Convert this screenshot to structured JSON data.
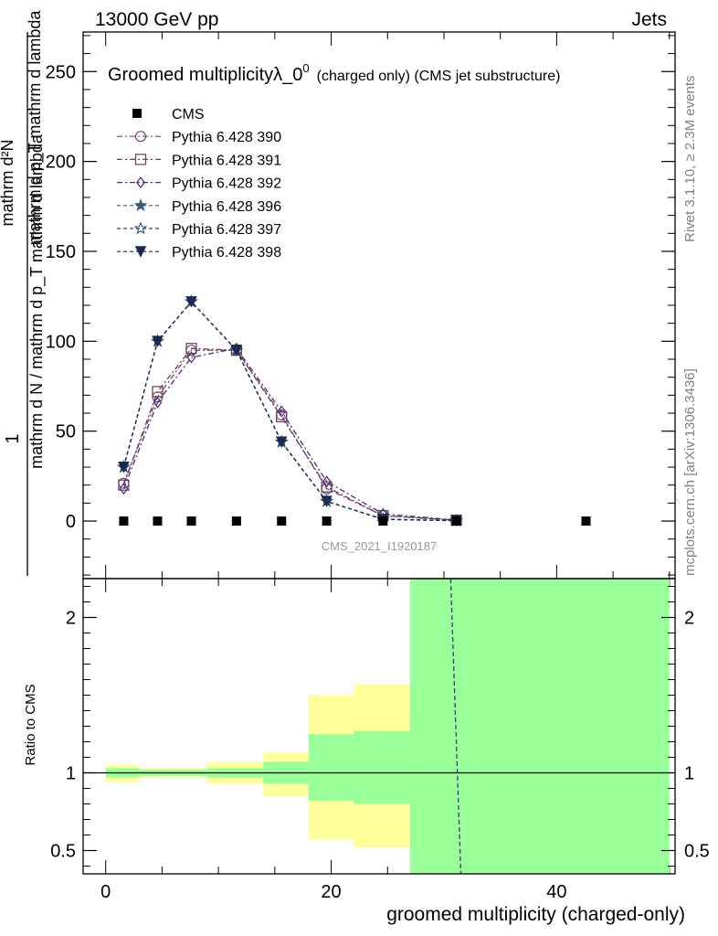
{
  "header": {
    "left": "13000 GeV pp",
    "right": "Jets"
  },
  "side": {
    "rivet": "Rivet 3.1.10, ≥ 2.3M events",
    "mcplots": "mcplots.cern.ch [arXiv:1306.3436]"
  },
  "chart_data": {
    "type": "line",
    "title_main": "Groomed multiplicityλ_0",
    "title_sup": "0",
    "title_sub": "(charged only) (CMS jet substructure)",
    "analysis_label": "CMS_2021_I1920187",
    "xlabel": "groomed multiplicity (charged-only)",
    "ylabel_num": "1",
    "ylabel_den": "mathrm d N / mathrm d p_T mathrm d lambda",
    "ylabel_top": "mathrm d²N",
    "ylabel_top_den": "mathrm d p_T mathrm d lambda",
    "ratio_ylabel": "Ratio to CMS",
    "xlim": [
      -2,
      50.5
    ],
    "ylim": [
      -32,
      272
    ],
    "ratio_ylim": [
      0.35,
      2.25
    ],
    "xticks": [
      0,
      20,
      40
    ],
    "yticks": [
      0,
      50,
      100,
      150,
      200,
      250
    ],
    "ratio_yticks": [
      0.5,
      1,
      2
    ],
    "bins": [
      [
        0,
        3
      ],
      [
        3,
        6
      ],
      [
        6,
        9
      ],
      [
        9,
        14
      ],
      [
        14,
        18
      ],
      [
        18,
        22
      ],
      [
        22,
        27
      ],
      [
        27,
        35
      ],
      [
        35,
        50
      ]
    ],
    "cms": {
      "name": "CMS",
      "x": [
        1.6,
        4.6,
        7.6,
        11.6,
        15.6,
        19.6,
        24.6,
        31.1,
        42.6
      ],
      "y": [
        0,
        0,
        0,
        0,
        0,
        0,
        0,
        0,
        0
      ]
    },
    "series": [
      {
        "name": "Pythia 6.428 390",
        "color": "#7a4a70",
        "marker": "circle",
        "dash": "6,3,2,3",
        "x": [
          1.6,
          4.6,
          7.6,
          11.6,
          15.6,
          19.6,
          24.6,
          31.1
        ],
        "y": [
          21,
          69,
          95,
          95,
          59,
          18,
          3,
          0.5
        ]
      },
      {
        "name": "Pythia 6.428 391",
        "color": "#6a3a55",
        "marker": "square",
        "dash": "6,3,2,3",
        "x": [
          1.6,
          4.6,
          7.6,
          11.6,
          15.6,
          19.6,
          24.6,
          31.1
        ],
        "y": [
          20,
          72,
          96,
          95,
          58,
          19,
          3,
          0.5
        ]
      },
      {
        "name": "Pythia 6.428 392",
        "color": "#4a2a7a",
        "marker": "diamond",
        "dash": "6,3,2,3",
        "x": [
          1.6,
          4.6,
          7.6,
          11.6,
          15.6,
          19.6,
          24.6,
          31.1
        ],
        "y": [
          18,
          66,
          91,
          96,
          61,
          22,
          4,
          0.6
        ]
      },
      {
        "name": "Pythia 6.428 396",
        "color": "#3a5a7a",
        "marker": "star",
        "dash": "4,3",
        "x": [
          1.6,
          4.6,
          7.6,
          11.6,
          15.6,
          19.6,
          24.6,
          31.1
        ],
        "y": [
          30,
          100,
          122,
          95,
          44,
          11,
          1,
          0.2
        ]
      },
      {
        "name": "Pythia 6.428 397",
        "color": "#2a4a6a",
        "marker": "star-open",
        "dash": "4,3",
        "x": [
          1.6,
          4.6,
          7.6,
          11.6,
          15.6,
          19.6,
          24.6,
          31.1
        ],
        "y": [
          30,
          100,
          122,
          95,
          44,
          11,
          1,
          0.2
        ]
      },
      {
        "name": "Pythia 6.428 398",
        "color": "#1a2a55",
        "marker": "triangle-down",
        "dash": "4,3",
        "x": [
          1.6,
          4.6,
          7.6,
          11.6,
          15.6,
          19.6,
          24.6,
          31.1
        ],
        "y": [
          30,
          100,
          122,
          95,
          44,
          11,
          1,
          0.2
        ]
      }
    ],
    "ratio_bands": {
      "yellow": [
        [
          0.94,
          1.05
        ],
        [
          0.97,
          1.03
        ],
        [
          0.97,
          1.03
        ],
        [
          0.93,
          1.07
        ],
        [
          0.85,
          1.13
        ],
        [
          0.57,
          1.5
        ],
        [
          0.52,
          1.57
        ],
        [
          0.3,
          2.4
        ],
        [
          0.3,
          2.4
        ]
      ],
      "green": [
        [
          0.97,
          1.03
        ],
        [
          0.98,
          1.02
        ],
        [
          0.98,
          1.02
        ],
        [
          0.97,
          1.03
        ],
        [
          0.93,
          1.07
        ],
        [
          0.82,
          1.25
        ],
        [
          0.8,
          1.27
        ],
        [
          0.3,
          2.4
        ],
        [
          0.3,
          2.4
        ]
      ]
    },
    "ratio_line": {
      "x": [
        30.6,
        31.5
      ],
      "y": [
        2.3,
        0.35
      ]
    }
  }
}
